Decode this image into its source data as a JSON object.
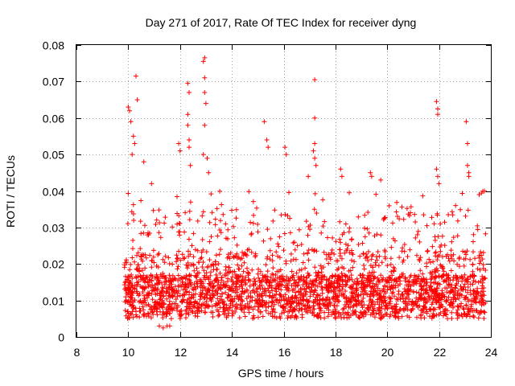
{
  "chart_data": {
    "type": "scatter",
    "title": "Day 271 of 2017, Rate Of TEC Index for receiver dyng",
    "xlabel": "GPS time / hours",
    "ylabel": "ROTI / TECUs",
    "xlim": [
      8,
      24
    ],
    "ylim": [
      0,
      0.08
    ],
    "x_ticks": [
      8,
      10,
      12,
      14,
      16,
      18,
      20,
      22,
      24
    ],
    "y_ticks": [
      0,
      0.01,
      0.02,
      0.03,
      0.04,
      0.05,
      0.06,
      0.07,
      0.08
    ],
    "x_tick_labels": [
      "8",
      "10",
      "12",
      "14",
      "16",
      "18",
      "20",
      "22",
      "24"
    ],
    "y_tick_labels": [
      "0",
      "0.01",
      "0.02",
      "0.03",
      "0.04",
      "0.05",
      "0.06",
      "0.07",
      "0.08"
    ],
    "grid": true,
    "marker": "+",
    "marker_color": "#ff0000",
    "series": [
      {
        "name": "ROTI",
        "data_range": [
          9.85,
          23.8
        ],
        "typical_range": [
          0.005,
          0.02
        ],
        "notable_points": [
          [
            10.0,
            0.063
          ],
          [
            10.05,
            0.062
          ],
          [
            10.1,
            0.059
          ],
          [
            10.3,
            0.0715
          ],
          [
            10.35,
            0.065
          ],
          [
            10.2,
            0.055
          ],
          [
            10.25,
            0.053
          ],
          [
            10.15,
            0.05
          ],
          [
            10.6,
            0.048
          ],
          [
            10.9,
            0.042
          ],
          [
            11.95,
            0.053
          ],
          [
            12.0,
            0.051
          ],
          [
            12.3,
            0.0695
          ],
          [
            12.35,
            0.067
          ],
          [
            12.3,
            0.058
          ],
          [
            12.3,
            0.061
          ],
          [
            12.35,
            0.054
          ],
          [
            12.35,
            0.052
          ],
          [
            12.4,
            0.047
          ],
          [
            12.9,
            0.0755
          ],
          [
            12.95,
            0.0765
          ],
          [
            12.95,
            0.071
          ],
          [
            12.95,
            0.067
          ],
          [
            13.0,
            0.064
          ],
          [
            12.95,
            0.058
          ],
          [
            12.9,
            0.05
          ],
          [
            13.05,
            0.049
          ],
          [
            13.1,
            0.045
          ],
          [
            15.25,
            0.059
          ],
          [
            15.35,
            0.054
          ],
          [
            15.4,
            0.052
          ],
          [
            16.05,
            0.052
          ],
          [
            16.1,
            0.05
          ],
          [
            16.95,
            0.044
          ],
          [
            17.2,
            0.0705
          ],
          [
            17.2,
            0.06
          ],
          [
            17.2,
            0.053
          ],
          [
            17.15,
            0.051
          ],
          [
            17.2,
            0.049
          ],
          [
            17.25,
            0.047
          ],
          [
            18.2,
            0.046
          ],
          [
            18.25,
            0.044
          ],
          [
            19.35,
            0.045
          ],
          [
            19.4,
            0.044
          ],
          [
            19.75,
            0.043
          ],
          [
            21.9,
            0.0645
          ],
          [
            21.95,
            0.0625
          ],
          [
            21.95,
            0.061
          ],
          [
            21.9,
            0.046
          ],
          [
            21.95,
            0.044
          ],
          [
            22.0,
            0.042
          ],
          [
            23.05,
            0.059
          ],
          [
            23.1,
            0.053
          ],
          [
            23.1,
            0.047
          ],
          [
            23.15,
            0.045
          ],
          [
            23.15,
            0.044
          ],
          [
            23.55,
            0.039
          ],
          [
            23.75,
            0.04
          ],
          [
            11.2,
            0.003
          ],
          [
            11.35,
            0.0025
          ],
          [
            11.5,
            0.003
          ],
          [
            11.6,
            0.003
          ]
        ]
      }
    ]
  }
}
